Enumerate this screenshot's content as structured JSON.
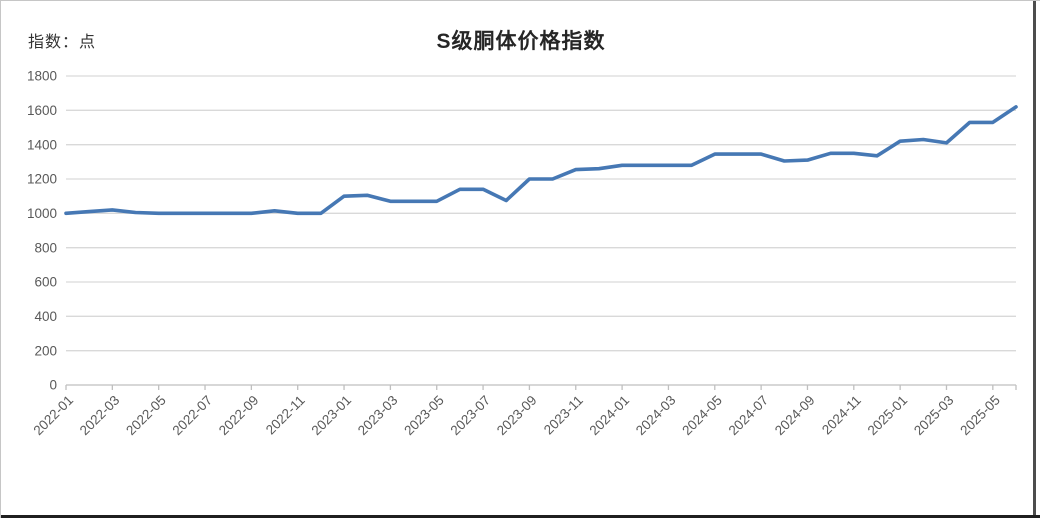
{
  "page": {
    "unit_label": "指数：点",
    "title": "S级胴体价格指数"
  },
  "colors": {
    "line": "#4678B4",
    "gridline": "#D9D9D9",
    "axis": "#BFBFBF",
    "tick_text": "#595959",
    "title_text": "#262626"
  },
  "chart_data": {
    "type": "line",
    "title": "S级胴体价格指数",
    "unit_label": "指数：点",
    "legend": "none",
    "grid": true,
    "ylim": [
      0,
      1800
    ],
    "ytick_interval": 200,
    "ytick_labels": [
      "0",
      "200",
      "400",
      "600",
      "800",
      "1000",
      "1200",
      "1400",
      "1600",
      "1800"
    ],
    "xtick_labels": [
      "2022-01",
      "2022-03",
      "2022-05",
      "2022-07",
      "2022-09",
      "2022-11",
      "2023-01",
      "2023-03",
      "2023-05",
      "2023-07",
      "2023-09",
      "2023-11",
      "2024-01",
      "2024-03",
      "2024-05",
      "2024-07",
      "2024-09",
      "2024-11",
      "2025-01",
      "2025-03",
      "2025-05"
    ],
    "x": [
      "2022-01",
      "2022-02",
      "2022-03",
      "2022-04",
      "2022-05",
      "2022-06",
      "2022-07",
      "2022-08",
      "2022-09",
      "2022-10",
      "2022-11",
      "2022-12",
      "2023-01",
      "2023-02",
      "2023-03",
      "2023-04",
      "2023-05",
      "2023-06",
      "2023-07",
      "2023-08",
      "2023-09",
      "2023-10",
      "2023-11",
      "2023-12",
      "2024-01",
      "2024-02",
      "2024-03",
      "2024-04",
      "2024-05",
      "2024-06",
      "2024-07",
      "2024-08",
      "2024-09",
      "2024-10",
      "2024-11",
      "2024-12",
      "2025-01",
      "2025-02",
      "2025-03",
      "2025-04",
      "2025-05",
      "2025-06"
    ],
    "series": [
      {
        "name": "S级胴体价格指数",
        "values": [
          1000,
          1010,
          1020,
          1005,
          1000,
          1000,
          1000,
          1000,
          1000,
          1015,
          1000,
          1000,
          1100,
          1105,
          1070,
          1070,
          1070,
          1140,
          1140,
          1075,
          1200,
          1200,
          1255,
          1260,
          1280,
          1280,
          1280,
          1280,
          1345,
          1345,
          1345,
          1305,
          1310,
          1350,
          1350,
          1335,
          1420,
          1430,
          1410,
          1530,
          1530,
          1620
        ]
      }
    ]
  }
}
